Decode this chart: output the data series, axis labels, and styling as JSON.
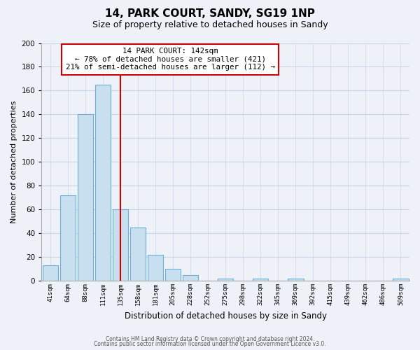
{
  "title": "14, PARK COURT, SANDY, SG19 1NP",
  "subtitle": "Size of property relative to detached houses in Sandy",
  "xlabel": "Distribution of detached houses by size in Sandy",
  "ylabel": "Number of detached properties",
  "bar_labels": [
    "41sqm",
    "64sqm",
    "88sqm",
    "111sqm",
    "135sqm",
    "158sqm",
    "181sqm",
    "205sqm",
    "228sqm",
    "252sqm",
    "275sqm",
    "298sqm",
    "322sqm",
    "345sqm",
    "369sqm",
    "392sqm",
    "415sqm",
    "439sqm",
    "462sqm",
    "486sqm",
    "509sqm"
  ],
  "bar_heights": [
    13,
    72,
    140,
    165,
    60,
    45,
    22,
    10,
    5,
    0,
    2,
    0,
    2,
    0,
    2,
    0,
    0,
    0,
    0,
    0,
    2
  ],
  "bar_color": "#c8dff0",
  "bar_edge_color": "#6baed6",
  "vline_x": 4.5,
  "vline_color": "#cc0000",
  "annotation_line1": "14 PARK COURT: 142sqm",
  "annotation_line2": "← 78% of detached houses are smaller (421)",
  "annotation_line3": "21% of semi-detached houses are larger (112) →",
  "annotation_box_color": "#cc0000",
  "annotation_box_fill": "#ffffff",
  "ylim": [
    0,
    200
  ],
  "yticks": [
    0,
    20,
    40,
    60,
    80,
    100,
    120,
    140,
    160,
    180,
    200
  ],
  "grid_color": "#c8d4e8",
  "footer_line1": "Contains HM Land Registry data © Crown copyright and database right 2024.",
  "footer_line2": "Contains public sector information licensed under the Open Government Licence v3.0.",
  "bg_color": "#eef2f8",
  "plot_bg_color": "#eef2f8"
}
